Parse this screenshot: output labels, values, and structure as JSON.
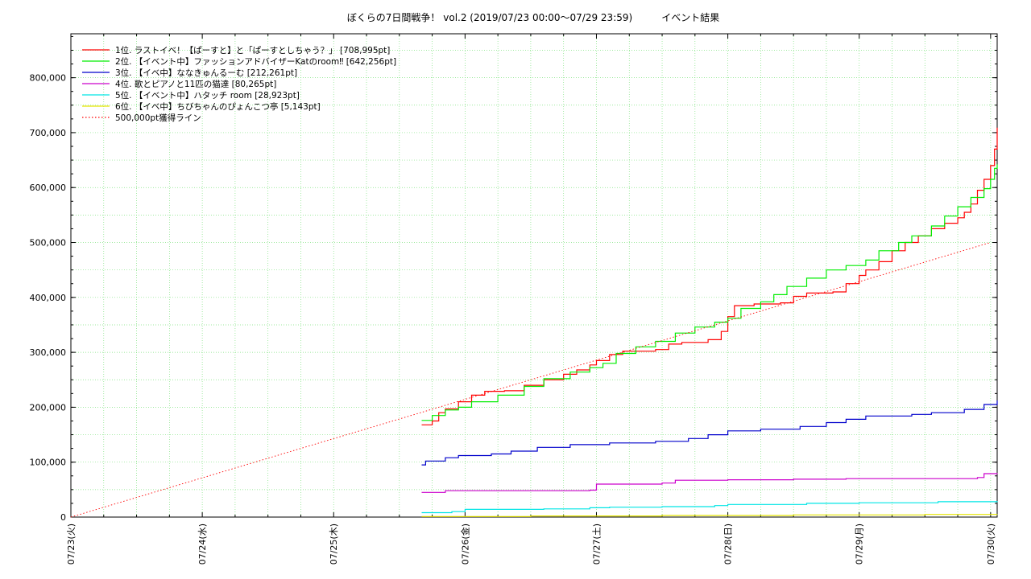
{
  "chart_data": {
    "type": "line",
    "title": "ぼくらの7日間戦争！ vol.2 (2019/07/23 00:00～07/29 23:59)　　　イベント結果",
    "xlabel": "",
    "ylabel": "",
    "xlim": [
      0,
      7.05
    ],
    "ylim": [
      0,
      880000
    ],
    "y_ticks": [
      0,
      100000,
      200000,
      300000,
      400000,
      500000,
      600000,
      700000,
      800000
    ],
    "y_tick_labels": [
      "0",
      "100,000",
      "200,000",
      "300,000",
      "400,000",
      "500,000",
      "600,000",
      "700,000",
      "800,000"
    ],
    "x_ticks": [
      0,
      1,
      2,
      3,
      4,
      5,
      6,
      7
    ],
    "x_tick_labels": [
      "07/23(火)",
      "07/24(水)",
      "07/25(木)",
      "07/26(金)",
      "07/27(土)",
      "07/28(日)",
      "07/29(月)",
      "07/30(火)"
    ],
    "grid": true,
    "legend_position": "top-left",
    "series": [
      {
        "name": "1位. ラストイベ！【ぱーすと】と「ぱーすとしちゃう？」 [708,995pt]",
        "color": "#ff0000",
        "points": [
          [
            2.67,
            168000
          ],
          [
            2.75,
            175000
          ],
          [
            2.8,
            190000
          ],
          [
            2.85,
            197000
          ],
          [
            2.95,
            210000
          ],
          [
            3.05,
            222000
          ],
          [
            3.15,
            229000
          ],
          [
            3.3,
            230000
          ],
          [
            3.45,
            240000
          ],
          [
            3.6,
            250000
          ],
          [
            3.75,
            260000
          ],
          [
            3.85,
            268000
          ],
          [
            3.95,
            277000
          ],
          [
            4.0,
            285000
          ],
          [
            4.1,
            296000
          ],
          [
            4.2,
            302000
          ],
          [
            4.45,
            305000
          ],
          [
            4.55,
            315000
          ],
          [
            4.65,
            318000
          ],
          [
            4.85,
            323000
          ],
          [
            4.95,
            338000
          ],
          [
            5.0,
            365000
          ],
          [
            5.05,
            385000
          ],
          [
            5.2,
            388000
          ],
          [
            5.4,
            390000
          ],
          [
            5.5,
            402000
          ],
          [
            5.6,
            408000
          ],
          [
            5.8,
            410000
          ],
          [
            5.9,
            425000
          ],
          [
            6.0,
            440000
          ],
          [
            6.05,
            450000
          ],
          [
            6.15,
            465000
          ],
          [
            6.25,
            485000
          ],
          [
            6.35,
            500000
          ],
          [
            6.45,
            512000
          ],
          [
            6.55,
            525000
          ],
          [
            6.65,
            535000
          ],
          [
            6.75,
            545000
          ],
          [
            6.8,
            555000
          ],
          [
            6.85,
            570000
          ],
          [
            6.9,
            595000
          ],
          [
            6.95,
            615000
          ],
          [
            7.0,
            640000
          ],
          [
            7.03,
            670000
          ],
          [
            7.05,
            708995
          ]
        ]
      },
      {
        "name": "2位. 【イベント中】ファッションアドバイザーKatのroom‼ [642,256pt]",
        "color": "#00ee00",
        "points": [
          [
            2.67,
            176000
          ],
          [
            2.75,
            185000
          ],
          [
            2.85,
            195000
          ],
          [
            2.95,
            200000
          ],
          [
            3.05,
            210000
          ],
          [
            3.25,
            222000
          ],
          [
            3.45,
            238000
          ],
          [
            3.6,
            252000
          ],
          [
            3.8,
            264000
          ],
          [
            3.95,
            272000
          ],
          [
            4.05,
            280000
          ],
          [
            4.15,
            298000
          ],
          [
            4.3,
            310000
          ],
          [
            4.45,
            320000
          ],
          [
            4.6,
            335000
          ],
          [
            4.75,
            346000
          ],
          [
            4.9,
            355000
          ],
          [
            5.0,
            362000
          ],
          [
            5.1,
            380000
          ],
          [
            5.25,
            392000
          ],
          [
            5.35,
            405000
          ],
          [
            5.45,
            420000
          ],
          [
            5.6,
            435000
          ],
          [
            5.75,
            450000
          ],
          [
            5.9,
            458000
          ],
          [
            6.05,
            468000
          ],
          [
            6.15,
            485000
          ],
          [
            6.3,
            500000
          ],
          [
            6.4,
            512000
          ],
          [
            6.55,
            530000
          ],
          [
            6.65,
            548000
          ],
          [
            6.75,
            565000
          ],
          [
            6.85,
            582000
          ],
          [
            6.95,
            598000
          ],
          [
            7.0,
            615000
          ],
          [
            7.03,
            635000
          ],
          [
            7.05,
            642256
          ]
        ]
      },
      {
        "name": "3位. 【イベ中】ななきゅんるーむ [212,261pt]",
        "color": "#0000cc",
        "points": [
          [
            2.67,
            95000
          ],
          [
            2.7,
            102000
          ],
          [
            2.85,
            108000
          ],
          [
            2.95,
            112000
          ],
          [
            3.2,
            115000
          ],
          [
            3.35,
            120000
          ],
          [
            3.55,
            127000
          ],
          [
            3.8,
            132000
          ],
          [
            4.1,
            135000
          ],
          [
            4.45,
            138000
          ],
          [
            4.7,
            143000
          ],
          [
            4.85,
            150000
          ],
          [
            5.0,
            157000
          ],
          [
            5.25,
            160000
          ],
          [
            5.55,
            165000
          ],
          [
            5.75,
            172000
          ],
          [
            5.9,
            178000
          ],
          [
            6.05,
            184000
          ],
          [
            6.4,
            187000
          ],
          [
            6.55,
            190000
          ],
          [
            6.8,
            196000
          ],
          [
            6.95,
            205000
          ],
          [
            7.05,
            212261
          ]
        ]
      },
      {
        "name": "4位. 歌とピアノと11匹の猫達 [80,265pt]",
        "color": "#cc00cc",
        "points": [
          [
            2.67,
            45000
          ],
          [
            2.85,
            48000
          ],
          [
            3.95,
            49000
          ],
          [
            4.0,
            60000
          ],
          [
            4.5,
            62000
          ],
          [
            4.6,
            67000
          ],
          [
            5.0,
            68000
          ],
          [
            5.5,
            69000
          ],
          [
            5.9,
            70000
          ],
          [
            6.5,
            70000
          ],
          [
            6.9,
            72000
          ],
          [
            6.95,
            79000
          ],
          [
            7.05,
            80265
          ]
        ]
      },
      {
        "name": "5位. 【イベント中】ハタッチ room [28,923pt]",
        "color": "#00e5e5",
        "points": [
          [
            2.67,
            8000
          ],
          [
            2.9,
            10000
          ],
          [
            3.0,
            14000
          ],
          [
            3.6,
            15000
          ],
          [
            3.95,
            17000
          ],
          [
            4.1,
            18000
          ],
          [
            4.5,
            19000
          ],
          [
            4.9,
            21000
          ],
          [
            5.0,
            23000
          ],
          [
            5.6,
            25000
          ],
          [
            6.0,
            26000
          ],
          [
            6.6,
            28000
          ],
          [
            7.05,
            28923
          ]
        ]
      },
      {
        "name": "6位. 【イベ中】ちびちゃんのぴょんこつ亭 [5,143pt]",
        "color": "#e5e500",
        "points": [
          [
            2.67,
            1000
          ],
          [
            3.5,
            2000
          ],
          [
            4.5,
            3000
          ],
          [
            5.5,
            4000
          ],
          [
            6.5,
            4800
          ],
          [
            7.05,
            5143
          ]
        ]
      },
      {
        "name": "500,000pt獲得ライン",
        "color": "#ff0000",
        "dashed": true,
        "points": [
          [
            0,
            0
          ],
          [
            7.0,
            500000
          ]
        ]
      }
    ]
  }
}
